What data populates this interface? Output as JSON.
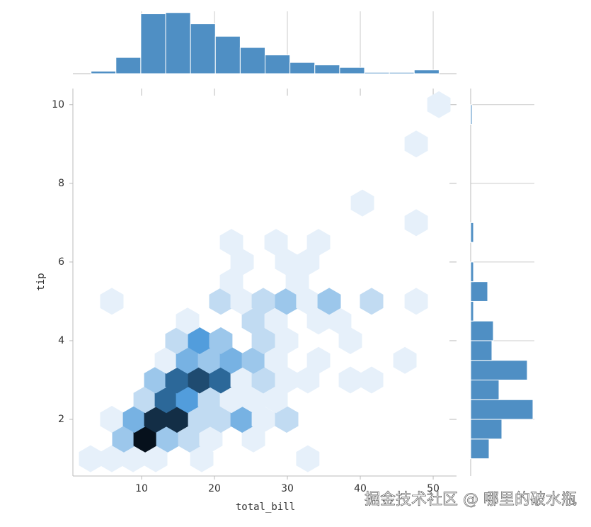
{
  "chart_data": [
    {
      "type": "hexbin",
      "x_label": "total_bill",
      "y_label": "tip",
      "x": [
        3.0,
        5.92,
        8.83,
        11.94,
        18.25,
        32.8,
        7.57,
        10.49,
        13.59,
        16.6,
        19.51,
        25.34,
        5.92,
        9.03,
        11.94,
        14.85,
        17.96,
        20.87,
        23.79,
        26.7,
        29.9,
        10.49,
        13.4,
        16.31,
        19.32,
        22.33,
        25.34,
        28.45,
        11.94,
        14.85,
        17.96,
        20.87,
        23.79,
        26.7,
        29.9,
        32.8,
        38.64,
        41.55,
        13.4,
        16.31,
        19.32,
        22.33,
        25.34,
        28.45,
        34.27,
        46.12,
        14.85,
        17.96,
        20.87,
        26.7,
        29.9,
        38.64,
        16.31,
        25.34,
        28.45,
        34.27,
        37.18,
        5.92,
        20.87,
        23.79,
        26.7,
        29.9,
        32.8,
        35.73,
        41.55,
        47.67,
        22.33,
        31.36,
        23.79,
        29.9,
        32.8,
        22.33,
        28.45,
        34.27,
        47.67,
        40.29,
        47.67,
        50.78
      ],
      "y": [
        1.0,
        1.0,
        1.0,
        1.0,
        1.0,
        1.0,
        1.5,
        1.5,
        1.5,
        1.5,
        1.5,
        1.5,
        2.0,
        2.0,
        2.0,
        2.0,
        2.0,
        2.0,
        2.0,
        2.0,
        2.0,
        2.5,
        2.5,
        2.5,
        2.5,
        2.5,
        2.5,
        2.5,
        3.0,
        3.0,
        3.0,
        3.0,
        3.0,
        3.0,
        3.0,
        3.0,
        3.0,
        3.0,
        3.5,
        3.5,
        3.5,
        3.5,
        3.5,
        3.5,
        3.5,
        3.5,
        4.0,
        4.0,
        4.0,
        4.0,
        4.0,
        4.0,
        4.5,
        4.5,
        4.5,
        4.5,
        4.5,
        5.0,
        5.0,
        5.0,
        5.0,
        5.0,
        5.0,
        5.0,
        5.0,
        5.0,
        5.5,
        5.5,
        6.0,
        6.0,
        6.0,
        6.5,
        6.5,
        6.5,
        7.0,
        7.5,
        9.0,
        10.0
      ],
      "counts": [
        1,
        1,
        1,
        1,
        1,
        1,
        3,
        10,
        3,
        2,
        1,
        1,
        1,
        4,
        9,
        9,
        2,
        2,
        4,
        1,
        2,
        2,
        7,
        5,
        2,
        1,
        1,
        1,
        3,
        7,
        8,
        7,
        1,
        2,
        1,
        1,
        1,
        1,
        1,
        4,
        3,
        4,
        3,
        1,
        1,
        1,
        2,
        5,
        3,
        2,
        1,
        1,
        1,
        2,
        1,
        1,
        1,
        1,
        2,
        1,
        2,
        3,
        1,
        3,
        2,
        1,
        1,
        1,
        1,
        1,
        1,
        1,
        1,
        1,
        1,
        1,
        1,
        1
      ],
      "colormap": [
        "#e6f0fa",
        "#3f93d8",
        "#06111c"
      ],
      "xlim": [
        0.58,
        53.2
      ],
      "ylim": [
        0.56,
        10.41
      ],
      "xticks": [
        10,
        20,
        30,
        40,
        50
      ],
      "yticks": [
        2,
        4,
        6,
        8,
        10
      ]
    },
    {
      "type": "histogram",
      "orientation": "vertical",
      "color": "#4f8fc4",
      "bins": [
        3.07,
        6.48,
        9.89,
        13.3,
        16.71,
        20.12,
        23.53,
        26.94,
        30.35,
        33.76,
        37.17,
        40.58,
        43.99,
        47.4,
        50.81
      ],
      "counts": [
        2,
        13,
        48,
        49,
        40,
        30,
        21,
        15,
        9,
        7,
        5,
        1,
        1,
        3
      ],
      "ylim": [
        0,
        50
      ],
      "grid": true
    },
    {
      "type": "histogram",
      "orientation": "horizontal",
      "color": "#4f8fc4",
      "bins": [
        1.0,
        1.5,
        2.0,
        2.5,
        3.0,
        3.5,
        4.0,
        4.5,
        5.0,
        5.5,
        6.0,
        6.5,
        7.0,
        7.5,
        8.0,
        8.5,
        9.0,
        9.5,
        10.0
      ],
      "counts": [
        13,
        22,
        44,
        20,
        40,
        15,
        16,
        2,
        12,
        2,
        0,
        2,
        0,
        0,
        0,
        0,
        0,
        1
      ],
      "xlim": [
        0,
        45
      ],
      "grid": true
    }
  ],
  "watermark": "掘金技术社区 @ 哪里的破水瓶"
}
